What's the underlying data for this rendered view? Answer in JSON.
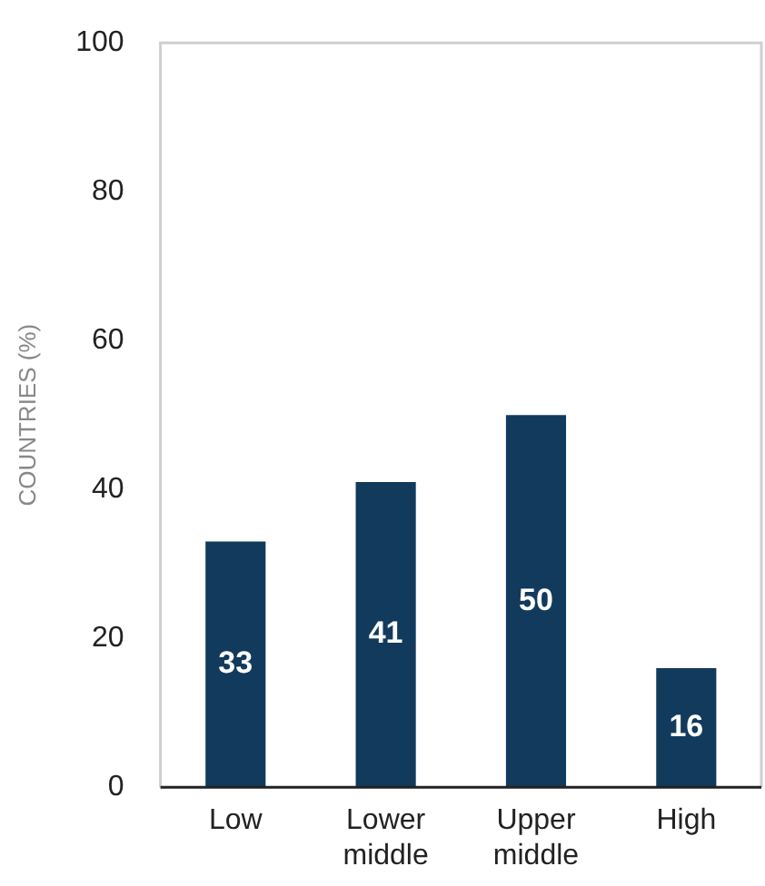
{
  "chart_data": {
    "type": "bar",
    "ylabel": "COUNTRIES (%)",
    "categories": [
      "Low",
      "Lower middle",
      "Upper middle",
      "High"
    ],
    "values": [
      33,
      41,
      50,
      16
    ],
    "color": "#123a5c",
    "ylim": [
      0,
      100
    ],
    "yticks": [
      0,
      20,
      40,
      60,
      80,
      100
    ],
    "grid": false,
    "legend": false,
    "data_labels": true
  }
}
